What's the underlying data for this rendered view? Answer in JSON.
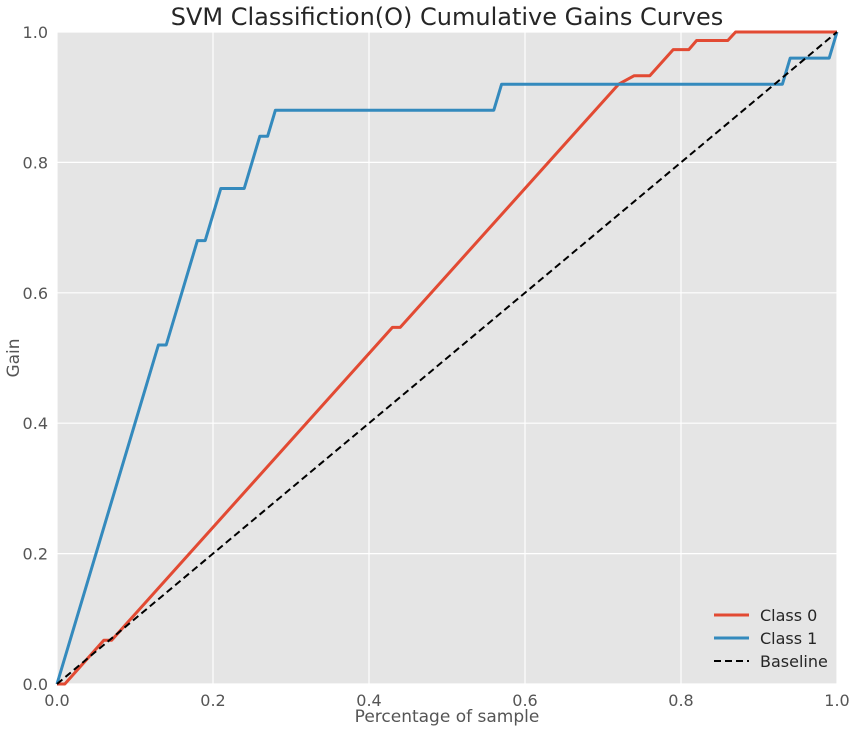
{
  "chart_data": {
    "type": "line",
    "title": "SVM Classifiction(O) Cumulative Gains Curves",
    "xlabel": "Percentage of sample",
    "ylabel": "Gain",
    "xlim": [
      0,
      1
    ],
    "ylim": [
      0,
      1
    ],
    "xticks": [
      "0.0",
      "0.2",
      "0.4",
      "0.6",
      "0.8",
      "1.0"
    ],
    "yticks": [
      "0.0",
      "0.2",
      "0.4",
      "0.6",
      "0.8",
      "1.0"
    ],
    "grid": true,
    "legend_position": "bottom-right",
    "series": [
      {
        "name": "Class 0",
        "color": "#e24a33",
        "dash": "solid",
        "x": [
          0,
          0.01,
          0.06,
          0.07,
          0.43,
          0.44,
          0.72,
          0.74,
          0.76,
          0.79,
          0.81,
          0.82,
          0.86,
          0.87,
          1.0
        ],
        "y": [
          0,
          0,
          0.067,
          0.067,
          0.547,
          0.547,
          0.92,
          0.933,
          0.933,
          0.973,
          0.973,
          0.987,
          0.987,
          1.0,
          1.0
        ]
      },
      {
        "name": "Class 1",
        "color": "#348abd",
        "dash": "solid",
        "x": [
          0,
          0.13,
          0.14,
          0.18,
          0.19,
          0.21,
          0.24,
          0.26,
          0.27,
          0.28,
          0.56,
          0.57,
          0.93,
          0.94,
          0.99,
          1.0
        ],
        "y": [
          0,
          0.52,
          0.52,
          0.68,
          0.68,
          0.76,
          0.76,
          0.84,
          0.84,
          0.88,
          0.88,
          0.92,
          0.92,
          0.96,
          0.96,
          1.0
        ]
      },
      {
        "name": "Baseline",
        "color": "#000000",
        "dash": "dashed",
        "x": [
          0,
          1
        ],
        "y": [
          0,
          1
        ]
      }
    ]
  }
}
